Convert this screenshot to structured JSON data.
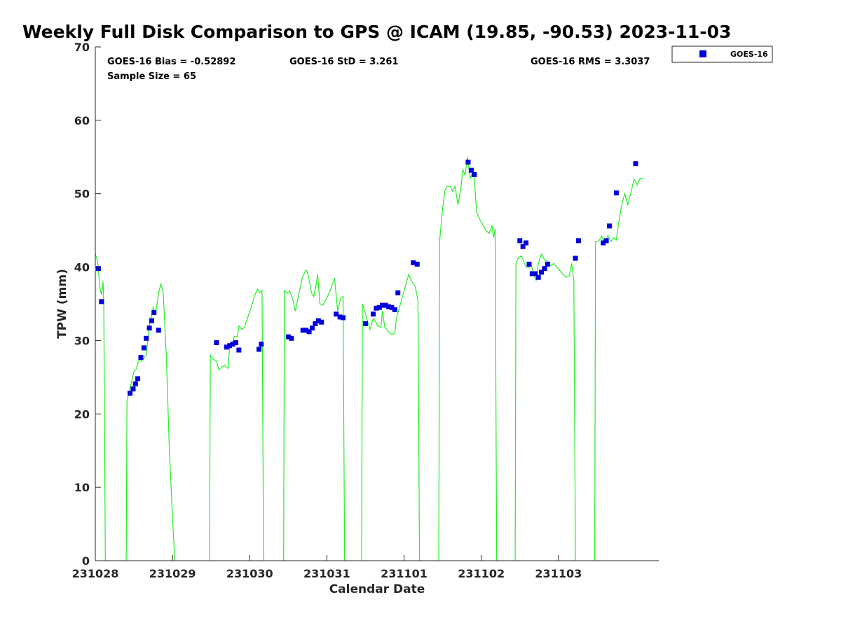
{
  "chart_data": {
    "type": "scatter",
    "title": "Weekly Full Disk Comparison to GPS @ ICAM (19.85, -90.53) 2023-11-03",
    "xlabel": "Calendar Date",
    "ylabel": "TPW (mm)",
    "xlim": [
      0,
      7.3
    ],
    "ylim": [
      0,
      70
    ],
    "x_ticks": [
      {
        "value": 0,
        "label": "231028"
      },
      {
        "value": 1,
        "label": "231029"
      },
      {
        "value": 2,
        "label": "231030"
      },
      {
        "value": 3,
        "label": "231031"
      },
      {
        "value": 4,
        "label": "231101"
      },
      {
        "value": 5,
        "label": "231102"
      },
      {
        "value": 6,
        "label": "231103"
      }
    ],
    "y_ticks": [
      0,
      10,
      20,
      30,
      40,
      50,
      60,
      70
    ],
    "stats": {
      "bias": "GOES-16 Bias = -0.52892",
      "std": "GOES-16 StD = 3.261",
      "rms": "GOES-16 RMS = 3.3037",
      "sample": "Sample Size = 65"
    },
    "legend": {
      "position": "top-right",
      "label": "GOES-16"
    },
    "colors": {
      "goes16": "#0000dd",
      "gps": "#22ee22"
    },
    "series": [
      {
        "name": "GOES-16",
        "marker": "square",
        "points": [
          [
            0.04,
            39.8
          ],
          [
            0.08,
            35.3
          ],
          [
            0.45,
            22.8
          ],
          [
            0.49,
            23.4
          ],
          [
            0.52,
            24.1
          ],
          [
            0.55,
            24.8
          ],
          [
            0.59,
            27.7
          ],
          [
            0.63,
            29.0
          ],
          [
            0.66,
            30.3
          ],
          [
            0.7,
            31.7
          ],
          [
            0.73,
            32.7
          ],
          [
            0.76,
            33.8
          ],
          [
            0.82,
            31.4
          ],
          [
            1.57,
            29.7
          ],
          [
            1.7,
            29.1
          ],
          [
            1.74,
            29.3
          ],
          [
            1.78,
            29.5
          ],
          [
            1.82,
            29.7
          ],
          [
            1.86,
            28.7
          ],
          [
            2.12,
            28.8
          ],
          [
            2.15,
            29.5
          ],
          [
            2.5,
            30.5
          ],
          [
            2.54,
            30.3
          ],
          [
            2.69,
            31.4
          ],
          [
            2.73,
            31.4
          ],
          [
            2.77,
            31.2
          ],
          [
            2.81,
            31.7
          ],
          [
            2.85,
            32.3
          ],
          [
            2.89,
            32.7
          ],
          [
            2.93,
            32.5
          ],
          [
            3.12,
            33.6
          ],
          [
            3.17,
            33.2
          ],
          [
            3.21,
            33.1
          ],
          [
            3.5,
            32.3
          ],
          [
            3.6,
            33.6
          ],
          [
            3.64,
            34.4
          ],
          [
            3.68,
            34.5
          ],
          [
            3.72,
            34.8
          ],
          [
            3.76,
            34.8
          ],
          [
            3.8,
            34.6
          ],
          [
            3.84,
            34.5
          ],
          [
            3.88,
            34.2
          ],
          [
            3.92,
            36.5
          ],
          [
            4.12,
            40.6
          ],
          [
            4.17,
            40.4
          ],
          [
            4.83,
            54.3
          ],
          [
            4.87,
            53.2
          ],
          [
            4.91,
            52.6
          ],
          [
            5.5,
            43.6
          ],
          [
            5.54,
            42.8
          ],
          [
            5.58,
            43.3
          ],
          [
            5.62,
            40.4
          ],
          [
            5.66,
            39.1
          ],
          [
            5.7,
            39.1
          ],
          [
            5.74,
            38.6
          ],
          [
            5.78,
            39.3
          ],
          [
            5.82,
            39.8
          ],
          [
            5.86,
            40.4
          ],
          [
            6.22,
            41.2
          ],
          [
            6.26,
            43.6
          ],
          [
            6.58,
            43.3
          ],
          [
            6.62,
            43.6
          ],
          [
            6.66,
            45.6
          ],
          [
            6.75,
            50.1
          ],
          [
            7.0,
            54.1
          ]
        ]
      },
      {
        "name": "GPS",
        "line": true,
        "segments": [
          [
            [
              0.0,
              41.8
            ],
            [
              0.03,
              40.8
            ],
            [
              0.06,
              37.2
            ],
            [
              0.08,
              36.2
            ],
            [
              0.1,
              38.0
            ],
            [
              0.11,
              35.0
            ],
            [
              0.13,
              0
            ]
          ],
          [
            [
              0.4,
              0
            ],
            [
              0.41,
              21.8
            ],
            [
              0.45,
              23.5
            ],
            [
              0.5,
              25.8
            ],
            [
              0.53,
              26.1
            ],
            [
              0.56,
              27.2
            ],
            [
              0.6,
              27.2
            ],
            [
              0.63,
              27.6
            ],
            [
              0.66,
              28.0
            ],
            [
              0.7,
              32.0
            ],
            [
              0.75,
              34.5
            ],
            [
              0.78,
              33.5
            ],
            [
              0.82,
              36.5
            ],
            [
              0.85,
              37.7
            ],
            [
              0.88,
              36.5
            ],
            [
              0.92,
              28.0
            ],
            [
              0.96,
              15.0
            ],
            [
              1.0,
              6.0
            ],
            [
              1.03,
              0
            ]
          ],
          [
            [
              1.48,
              0
            ],
            [
              1.49,
              28.0
            ],
            [
              1.52,
              27.5
            ],
            [
              1.57,
              27.2
            ],
            [
              1.6,
              26.0
            ],
            [
              1.64,
              26.4
            ],
            [
              1.68,
              26.6
            ],
            [
              1.72,
              26.2
            ],
            [
              1.74,
              29.0
            ],
            [
              1.78,
              29.5
            ],
            [
              1.8,
              30.6
            ],
            [
              1.84,
              30.5
            ],
            [
              1.86,
              32.0
            ],
            [
              1.9,
              31.5
            ],
            [
              1.93,
              31.8
            ],
            [
              1.97,
              33.0
            ],
            [
              2.02,
              34.5
            ],
            [
              2.06,
              36.0
            ],
            [
              2.1,
              37.0
            ],
            [
              2.13,
              36.5
            ],
            [
              2.16,
              36.8
            ],
            [
              2.18,
              0
            ]
          ],
          [
            [
              2.44,
              0
            ],
            [
              2.45,
              36.8
            ],
            [
              2.48,
              36.5
            ],
            [
              2.52,
              36.7
            ],
            [
              2.56,
              35.5
            ],
            [
              2.59,
              34.0
            ],
            [
              2.64,
              36.5
            ],
            [
              2.68,
              38.5
            ],
            [
              2.72,
              39.5
            ],
            [
              2.74,
              39.6
            ],
            [
              2.76,
              38.8
            ],
            [
              2.8,
              36.5
            ],
            [
              2.83,
              36.0
            ],
            [
              2.86,
              37.5
            ],
            [
              2.88,
              39.0
            ],
            [
              2.91,
              35.0
            ],
            [
              2.95,
              34.8
            ],
            [
              3.0,
              35.8
            ],
            [
              3.05,
              37.0
            ],
            [
              3.1,
              38.5
            ],
            [
              3.14,
              34.0
            ],
            [
              3.18,
              35.8
            ],
            [
              3.21,
              36.0
            ],
            [
              3.23,
              0
            ]
          ],
          [
            [
              3.45,
              0
            ],
            [
              3.46,
              35.0
            ],
            [
              3.49,
              34.0
            ],
            [
              3.53,
              32.5
            ],
            [
              3.56,
              31.5
            ],
            [
              3.6,
              33.0
            ],
            [
              3.63,
              32.6
            ],
            [
              3.66,
              32.0
            ],
            [
              3.7,
              31.8
            ],
            [
              3.72,
              34.0
            ],
            [
              3.75,
              31.8
            ],
            [
              3.78,
              31.5
            ],
            [
              3.8,
              31.2
            ],
            [
              3.84,
              30.8
            ],
            [
              3.88,
              31.0
            ],
            [
              3.9,
              33.0
            ],
            [
              3.94,
              34.5
            ],
            [
              3.98,
              36.0
            ],
            [
              4.02,
              37.5
            ],
            [
              4.06,
              39.0
            ],
            [
              4.1,
              38.0
            ],
            [
              4.14,
              37.5
            ],
            [
              4.18,
              35.5
            ],
            [
              4.2,
              0
            ]
          ],
          [
            [
              4.45,
              0
            ],
            [
              4.46,
              43.5
            ],
            [
              4.5,
              48.0
            ],
            [
              4.53,
              50.5
            ],
            [
              4.56,
              51.0
            ],
            [
              4.6,
              51.0
            ],
            [
              4.63,
              50.3
            ],
            [
              4.66,
              51.0
            ],
            [
              4.7,
              48.5
            ],
            [
              4.74,
              51.0
            ],
            [
              4.76,
              53.3
            ],
            [
              4.79,
              52.5
            ],
            [
              4.82,
              55.0
            ],
            [
              4.86,
              52.0
            ],
            [
              4.9,
              53.5
            ],
            [
              4.94,
              47.5
            ],
            [
              4.98,
              46.5
            ],
            [
              5.02,
              45.8
            ],
            [
              5.06,
              45.0
            ],
            [
              5.1,
              44.6
            ],
            [
              5.14,
              45.6
            ],
            [
              5.16,
              44.0
            ],
            [
              5.18,
              45.2
            ],
            [
              5.2,
              0
            ]
          ],
          [
            [
              5.44,
              0
            ],
            [
              5.45,
              40.5
            ],
            [
              5.48,
              41.3
            ],
            [
              5.52,
              41.5
            ],
            [
              5.55,
              40.8
            ],
            [
              5.58,
              40.0
            ],
            [
              5.62,
              40.0
            ],
            [
              5.65,
              40.2
            ],
            [
              5.68,
              39.0
            ],
            [
              5.71,
              38.2
            ],
            [
              5.74,
              40.5
            ],
            [
              5.78,
              41.8
            ],
            [
              5.82,
              41.0
            ],
            [
              5.86,
              40.8
            ],
            [
              5.9,
              40.2
            ],
            [
              5.94,
              40.5
            ],
            [
              5.98,
              40.0
            ],
            [
              6.02,
              39.5
            ],
            [
              6.06,
              39.0
            ],
            [
              6.1,
              38.6
            ],
            [
              6.14,
              38.8
            ],
            [
              6.17,
              40.5
            ],
            [
              6.2,
              38.2
            ],
            [
              6.22,
              0
            ]
          ],
          [
            [
              6.47,
              0
            ],
            [
              6.48,
              43.5
            ],
            [
              6.52,
              43.5
            ],
            [
              6.56,
              44.2
            ],
            [
              6.6,
              43.2
            ],
            [
              6.64,
              44.3
            ],
            [
              6.68,
              43.5
            ],
            [
              6.72,
              44.0
            ],
            [
              6.75,
              43.7
            ],
            [
              6.78,
              46.0
            ],
            [
              6.82,
              48.5
            ],
            [
              6.86,
              50.0
            ],
            [
              6.9,
              48.5
            ],
            [
              6.94,
              50.2
            ],
            [
              6.98,
              52.0
            ],
            [
              7.02,
              51.2
            ],
            [
              7.06,
              52.1
            ],
            [
              7.1,
              52.0
            ]
          ]
        ]
      }
    ]
  }
}
